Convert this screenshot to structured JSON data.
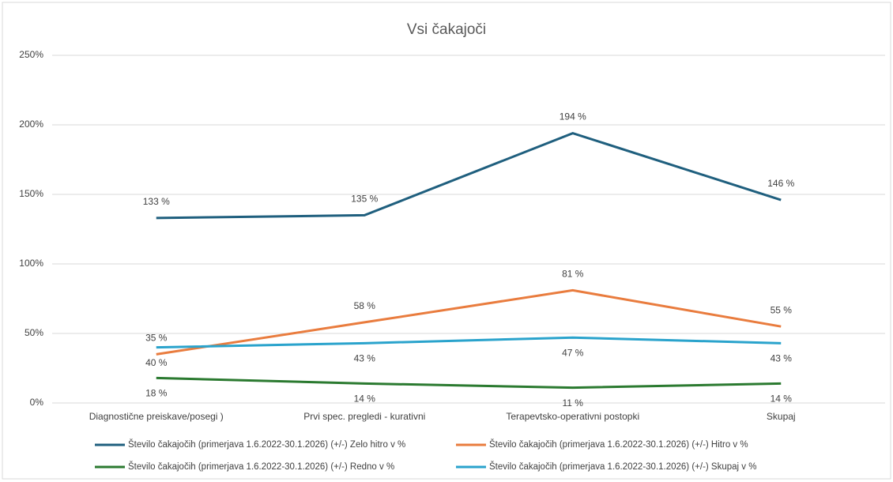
{
  "chart_data": {
    "type": "line",
    "title": "Vsi čakajoči",
    "categories": [
      "Diagnostične preiskave/posegi )",
      "Prvi  spec. pregledi - kurativni",
      "Terapevtsko-operativni postopki",
      "Skupaj"
    ],
    "series": [
      {
        "name": "Število čakajočih (primerjava 1.6.2022-30.1.2026) (+/-) Zelo hitro v %",
        "color": "#1f5f7e",
        "values": [
          133,
          135,
          194,
          146
        ],
        "value_labels": [
          "133 %",
          "135 %",
          "194 %",
          "146 %"
        ]
      },
      {
        "name": "Število čakajočih (primerjava 1.6.2022-30.1.2026) (+/-) Hitro  v %",
        "color": "#e97c3e",
        "values": [
          35,
          58,
          81,
          55
        ],
        "value_labels": [
          "35 %",
          "58 %",
          "81 %",
          "55 %"
        ]
      },
      {
        "name": "Število čakajočih (primerjava 1.6.2022-30.1.2026) (+/-) Redno v %",
        "color": "#2b7a30",
        "values": [
          18,
          14,
          11,
          14
        ],
        "value_labels": [
          "18 %",
          "14 %",
          "11 %",
          "14 %"
        ]
      },
      {
        "name": "Število čakajočih (primerjava 1.6.2022-30.1.2026) (+/-) Skupaj v %",
        "color": "#2aa3cc",
        "values": [
          40,
          43,
          47,
          43
        ],
        "value_labels": [
          "40 %",
          "43 %",
          "47 %",
          "43 %"
        ]
      }
    ],
    "ylim": [
      0,
      250
    ],
    "yticks": [
      {
        "value": 0,
        "label": "0%"
      },
      {
        "value": 50,
        "label": "50%"
      },
      {
        "value": 100,
        "label": "100%"
      },
      {
        "value": 150,
        "label": "150%"
      },
      {
        "value": 200,
        "label": "200%"
      },
      {
        "value": 250,
        "label": "250%"
      }
    ],
    "grid": true
  }
}
